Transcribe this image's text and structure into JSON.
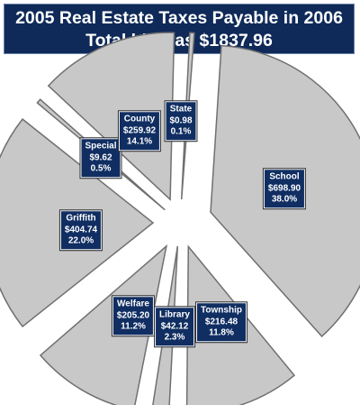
{
  "chart_data": {
    "type": "pie",
    "title": "2005 Real Estate Taxes Payable in 2006",
    "subtitle": "Total bill was $1837.96",
    "colors": {
      "slice_fill": "#c8c8c8",
      "slice_stroke": "#707070",
      "label_bg": "#102e62",
      "title_bg": "#0f2a59"
    },
    "slices": [
      {
        "name": "School",
        "amount": "$698.90",
        "percent": "38.0%",
        "value": 38.0
      },
      {
        "name": "Township",
        "amount": "$216.48",
        "percent": "11.8%",
        "value": 11.8
      },
      {
        "name": "Library",
        "amount": "$42.12",
        "percent": "2.3%",
        "value": 2.3
      },
      {
        "name": "Welfare",
        "amount": "$205.20",
        "percent": "11.2%",
        "value": 11.2
      },
      {
        "name": "Griffith",
        "amount": "$404.74",
        "percent": "22.0%",
        "value": 22.0
      },
      {
        "name": "Special",
        "amount": "$9.62",
        "percent": "0.5%",
        "value": 0.5
      },
      {
        "name": "County",
        "amount": "$259.92",
        "percent": "14.1%",
        "value": 14.1
      },
      {
        "name": "State",
        "amount": "$0.98",
        "percent": "0.1%",
        "value": 0.1
      }
    ]
  }
}
